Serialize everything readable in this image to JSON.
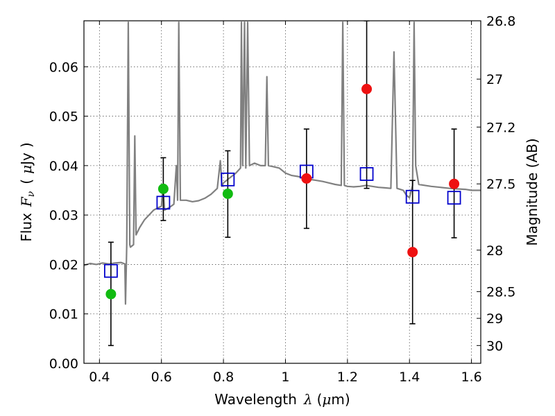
{
  "chart_data": {
    "type": "scatter",
    "title": "",
    "xlabel_main": "Wavelength",
    "xlabel_symbol": "λ",
    "xlabel_unit_open": "(",
    "xlabel_unit_mu": "μ",
    "xlabel_unit_rest": "m)",
    "ylabel_main": "Flux",
    "ylabel_symbol": "F",
    "ylabel_sub": "ν",
    "ylabel_unit_open": "(",
    "ylabel_unit_mu": "μ",
    "ylabel_unit_rest": "Jy",
    "ylabel_unit_close": ")",
    "y2label": "Magnitude (AB)",
    "xlim": [
      0.35,
      1.63
    ],
    "ylim": [
      0.0,
      0.0693
    ],
    "grid": true,
    "x_ticks": [
      {
        "value": 0.4,
        "label": "0.4"
      },
      {
        "value": 0.6,
        "label": "0.6"
      },
      {
        "value": 0.8,
        "label": "0.8"
      },
      {
        "value": 1.0,
        "label": "1"
      },
      {
        "value": 1.2,
        "label": "1.2"
      },
      {
        "value": 1.4,
        "label": "1.4"
      },
      {
        "value": 1.6,
        "label": "1.6"
      }
    ],
    "y_ticks": [
      {
        "value": 0.0,
        "label": "0.00"
      },
      {
        "value": 0.01,
        "label": "0.01"
      },
      {
        "value": 0.02,
        "label": "0.02"
      },
      {
        "value": 0.03,
        "label": "0.03"
      },
      {
        "value": 0.04,
        "label": "0.04"
      },
      {
        "value": 0.05,
        "label": "0.05"
      },
      {
        "value": 0.06,
        "label": "0.06"
      }
    ],
    "y2_ticks": [
      {
        "flux": 0.0693,
        "label": "26.8"
      },
      {
        "flux": 0.0575,
        "label": "27"
      },
      {
        "flux": 0.0478,
        "label": "27.2"
      },
      {
        "flux": 0.0363,
        "label": "27.5"
      },
      {
        "flux": 0.0229,
        "label": "28"
      },
      {
        "flux": 0.0145,
        "label": "28.5"
      },
      {
        "flux": 0.0091,
        "label": "29"
      },
      {
        "flux": 0.0036,
        "label": "30"
      }
    ],
    "colors": {
      "spectrum": "#808080",
      "model": "#0000cc",
      "green": "#11bb11",
      "red": "#ee1111",
      "errorbar": "#000000",
      "grid": "#555555"
    },
    "spectrum": [
      [
        0.35,
        0.0198
      ],
      [
        0.37,
        0.0202
      ],
      [
        0.39,
        0.02
      ],
      [
        0.41,
        0.0203
      ],
      [
        0.43,
        0.0201
      ],
      [
        0.45,
        0.0203
      ],
      [
        0.47,
        0.0204
      ],
      [
        0.482,
        0.0201
      ],
      [
        0.484,
        0.012
      ],
      [
        0.488,
        0.024
      ],
      [
        0.493,
        0.069
      ],
      [
        0.498,
        0.024
      ],
      [
        0.5,
        0.0235
      ],
      [
        0.51,
        0.024
      ],
      [
        0.514,
        0.046
      ],
      [
        0.518,
        0.026
      ],
      [
        0.53,
        0.0275
      ],
      [
        0.545,
        0.029
      ],
      [
        0.56,
        0.03
      ],
      [
        0.575,
        0.031
      ],
      [
        0.59,
        0.0315
      ],
      [
        0.6,
        0.0318
      ],
      [
        0.605,
        0.036
      ],
      [
        0.61,
        0.031
      ],
      [
        0.625,
        0.0315
      ],
      [
        0.64,
        0.0322
      ],
      [
        0.648,
        0.04
      ],
      [
        0.652,
        0.033
      ],
      [
        0.656,
        0.069
      ],
      [
        0.661,
        0.033
      ],
      [
        0.68,
        0.033
      ],
      [
        0.7,
        0.0327
      ],
      [
        0.72,
        0.0329
      ],
      [
        0.74,
        0.0334
      ],
      [
        0.76,
        0.0342
      ],
      [
        0.78,
        0.0354
      ],
      [
        0.79,
        0.041
      ],
      [
        0.795,
        0.0358
      ],
      [
        0.8,
        0.0365
      ],
      [
        0.82,
        0.0375
      ],
      [
        0.84,
        0.0385
      ],
      [
        0.855,
        0.0395
      ],
      [
        0.858,
        0.069
      ],
      [
        0.862,
        0.04
      ],
      [
        0.868,
        0.069
      ],
      [
        0.872,
        0.0395
      ],
      [
        0.878,
        0.069
      ],
      [
        0.884,
        0.04
      ],
      [
        0.9,
        0.0405
      ],
      [
        0.92,
        0.04
      ],
      [
        0.935,
        0.04
      ],
      [
        0.94,
        0.058
      ],
      [
        0.945,
        0.04
      ],
      [
        0.96,
        0.0398
      ],
      [
        0.98,
        0.0395
      ],
      [
        1.0,
        0.0385
      ],
      [
        1.02,
        0.038
      ],
      [
        1.04,
        0.0378
      ],
      [
        1.06,
        0.0375
      ],
      [
        1.08,
        0.0372
      ],
      [
        1.1,
        0.037
      ],
      [
        1.12,
        0.0368
      ],
      [
        1.14,
        0.0365
      ],
      [
        1.16,
        0.0362
      ],
      [
        1.18,
        0.036
      ],
      [
        1.185,
        0.069
      ],
      [
        1.19,
        0.036
      ],
      [
        1.2,
        0.0358
      ],
      [
        1.22,
        0.0357
      ],
      [
        1.24,
        0.0358
      ],
      [
        1.26,
        0.036
      ],
      [
        1.28,
        0.0358
      ],
      [
        1.3,
        0.0356
      ],
      [
        1.32,
        0.0355
      ],
      [
        1.34,
        0.0354
      ],
      [
        1.35,
        0.063
      ],
      [
        1.36,
        0.0354
      ],
      [
        1.37,
        0.0352
      ],
      [
        1.38,
        0.035
      ],
      [
        1.39,
        0.034
      ],
      [
        1.4,
        0.0335
      ],
      [
        1.41,
        0.036
      ],
      [
        1.415,
        0.069
      ],
      [
        1.42,
        0.04
      ],
      [
        1.43,
        0.0362
      ],
      [
        1.45,
        0.036
      ],
      [
        1.47,
        0.0358
      ],
      [
        1.5,
        0.0356
      ],
      [
        1.53,
        0.0354
      ],
      [
        1.55,
        0.0353
      ],
      [
        1.58,
        0.0352
      ],
      [
        1.6,
        0.035
      ],
      [
        1.63,
        0.035
      ]
    ],
    "model_points": [
      {
        "x": 0.437,
        "y": 0.0187
      },
      {
        "x": 0.606,
        "y": 0.0325
      },
      {
        "x": 0.814,
        "y": 0.0372
      },
      {
        "x": 1.068,
        "y": 0.0388
      },
      {
        "x": 1.262,
        "y": 0.0383
      },
      {
        "x": 1.41,
        "y": 0.0337
      },
      {
        "x": 1.544,
        "y": 0.0335
      }
    ],
    "observed_green": [
      {
        "x": 0.437,
        "y": 0.014,
        "low": 0.0036,
        "high": 0.0245
      },
      {
        "x": 0.606,
        "y": 0.0353,
        "low": 0.0289,
        "high": 0.0416
      },
      {
        "x": 0.814,
        "y": 0.0343,
        "low": 0.0255,
        "high": 0.043
      }
    ],
    "observed_red": [
      {
        "x": 1.068,
        "y": 0.0374,
        "low": 0.0273,
        "high": 0.0474
      },
      {
        "x": 1.262,
        "y": 0.0555,
        "low": 0.0354,
        "high": 0.0693
      },
      {
        "x": 1.41,
        "y": 0.0225,
        "low": 0.008,
        "high": 0.037
      },
      {
        "x": 1.544,
        "y": 0.0363,
        "low": 0.0254,
        "high": 0.0474
      }
    ]
  }
}
